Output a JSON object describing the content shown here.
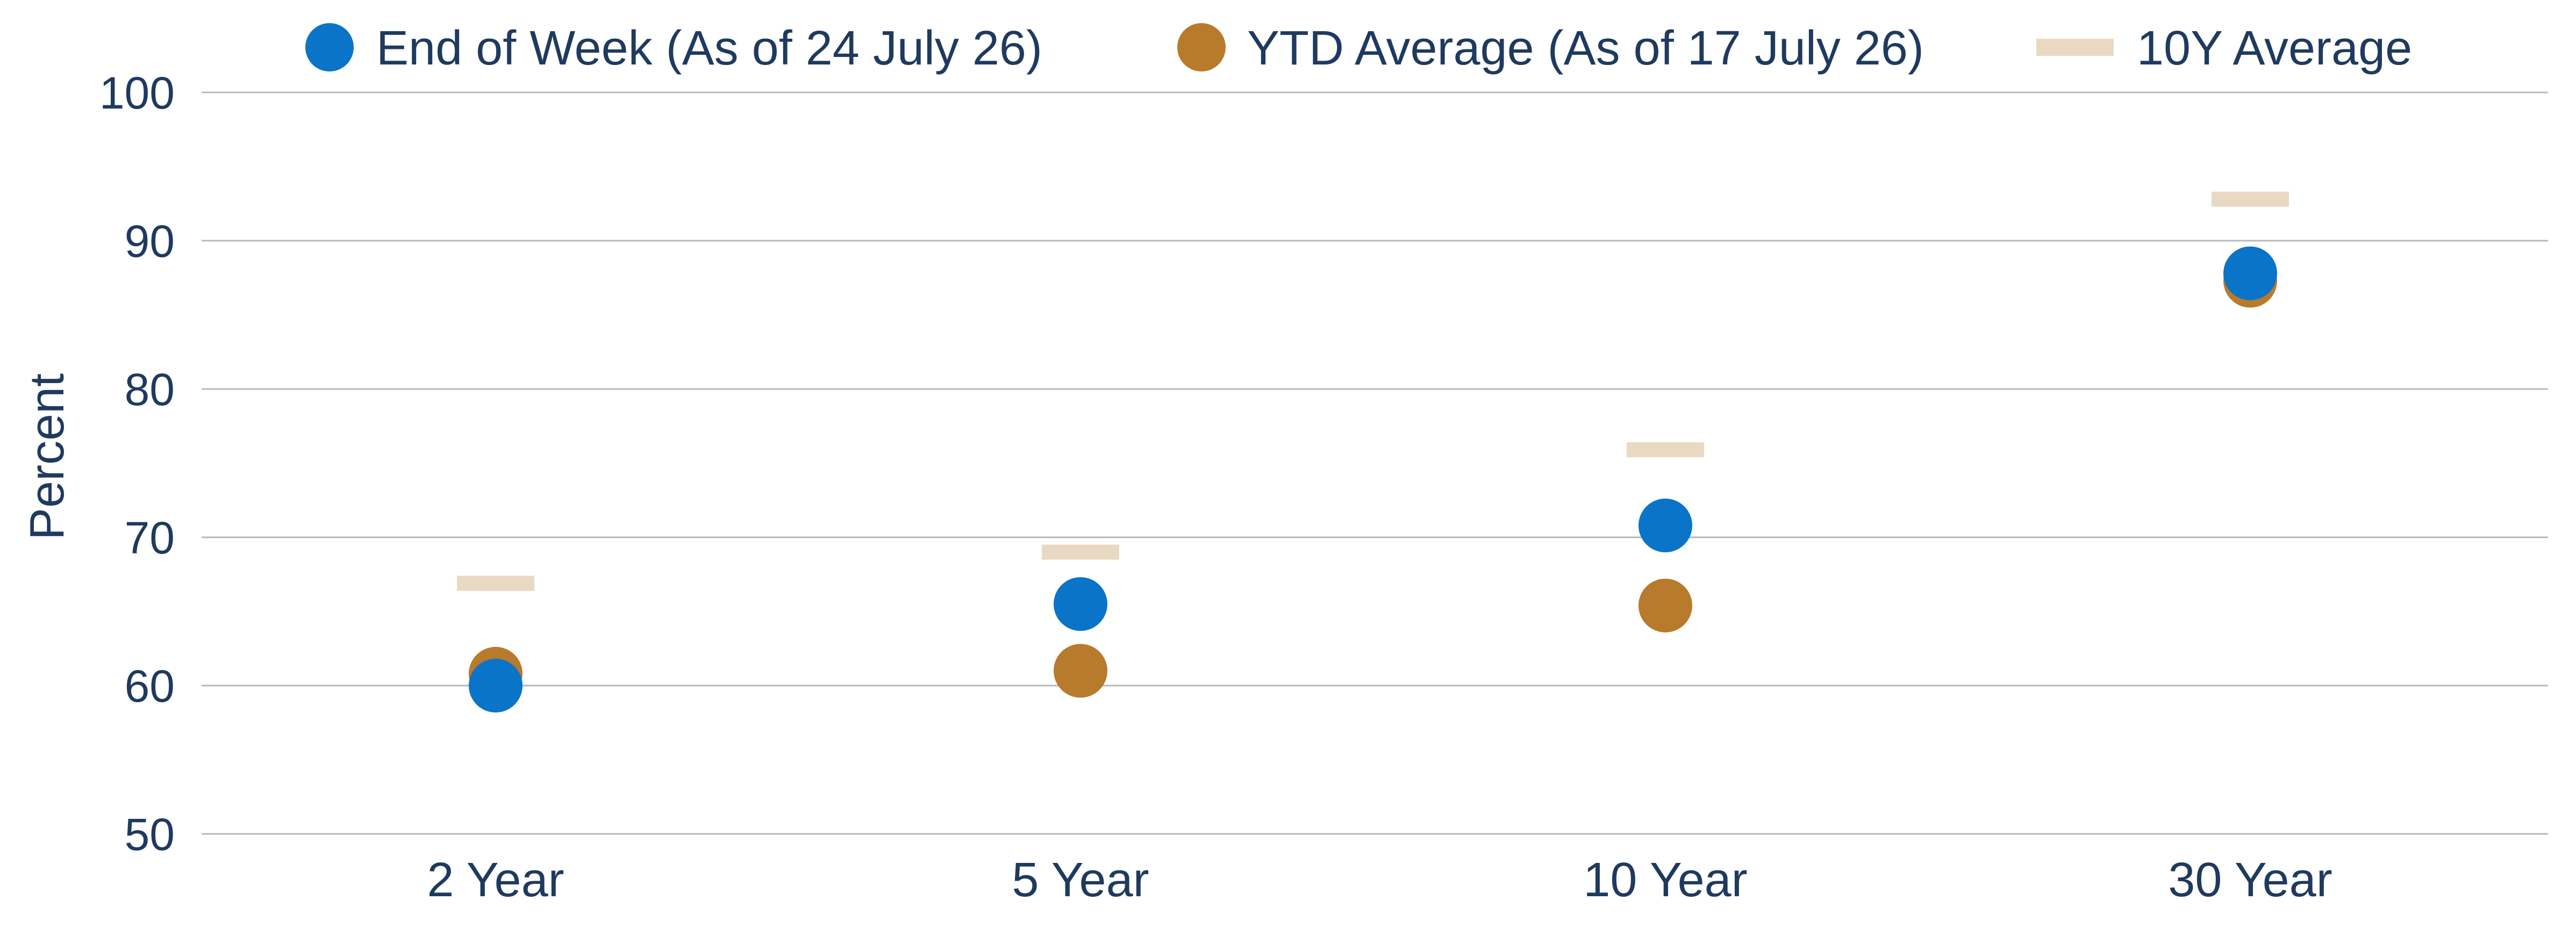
{
  "chart_data": {
    "type": "scatter",
    "categories": [
      "2 Year",
      "5 Year",
      "10 Year",
      "30 Year"
    ],
    "ylabel": "Percent",
    "ylim": [
      50,
      100
    ],
    "yticks": [
      50,
      60,
      70,
      80,
      90,
      100
    ],
    "grid": true,
    "legend_position": "top",
    "series": [
      {
        "name": "End of Week (As of 24 July 26)",
        "marker": "circle",
        "color": "#0a74c9",
        "values": [
          60.0,
          65.5,
          70.8,
          87.8
        ]
      },
      {
        "name": "YTD Average (As of 17 July 26)",
        "marker": "circle",
        "color": "#b87a2b",
        "values": [
          60.8,
          61.0,
          65.4,
          87.3
        ]
      },
      {
        "name": "10Y Average",
        "marker": "dash",
        "color": "#ead9c2",
        "values": [
          66.9,
          69.0,
          75.9,
          92.8
        ]
      }
    ]
  }
}
